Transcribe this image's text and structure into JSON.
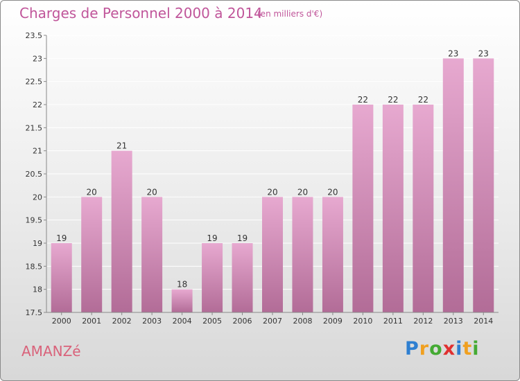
{
  "header": {
    "title": "Charges de Personnel 2000 à 2014",
    "subtitle": "(en milliers d'€)"
  },
  "footer": {
    "commune": "AMANZé",
    "logo": [
      {
        "ch": "P",
        "color": "#2e7fd1"
      },
      {
        "ch": "r",
        "color": "#f0a020"
      },
      {
        "ch": "o",
        "color": "#44aa33"
      },
      {
        "ch": "x",
        "color": "#e03030"
      },
      {
        "ch": "i",
        "color": "#2e7fd1"
      },
      {
        "ch": "t",
        "color": "#f0a020"
      },
      {
        "ch": "i",
        "color": "#44aa33"
      }
    ]
  },
  "colors": {
    "bar_top": "#e7a9d0",
    "bar_bottom": "#b26c97",
    "axis": "#888888",
    "grid": "#ffffff",
    "text": "#333333"
  },
  "chart_data": {
    "type": "bar",
    "categories": [
      "2000",
      "2001",
      "2002",
      "2003",
      "2004",
      "2005",
      "2006",
      "2007",
      "2008",
      "2009",
      "2010",
      "2011",
      "2012",
      "2013",
      "2014"
    ],
    "values": [
      19,
      20,
      21,
      20,
      18,
      19,
      19,
      20,
      20,
      20,
      22,
      22,
      22,
      23,
      23
    ],
    "labels": [
      "19",
      "20",
      "21",
      "20",
      "18",
      "19",
      "19",
      "20",
      "20",
      "20",
      "22",
      "22",
      "22",
      "23",
      "23"
    ],
    "yticks": [
      "17.5",
      "18",
      "18.5",
      "19",
      "19.5",
      "20",
      "20.5",
      "21",
      "21.5",
      "22",
      "22.5",
      "23",
      "23.5"
    ],
    "ylim": [
      17.5,
      23.5
    ],
    "title": "Charges de Personnel 2000 à 2014",
    "xlabel": "",
    "ylabel": "",
    "grid": true
  }
}
